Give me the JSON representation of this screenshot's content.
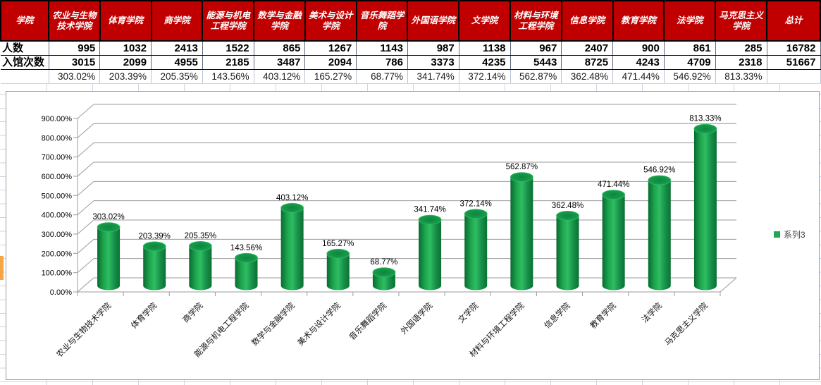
{
  "table": {
    "corner_label": "学院",
    "columns": [
      "农业与生物技术学院",
      "体育学院",
      "商学院",
      "能源与机电工程学院",
      "数学与金融学院",
      "美术与设计学院",
      "音乐舞蹈学院",
      "外国语学院",
      "文学院",
      "材料与环境工程学院",
      "信息学院",
      "教育学院",
      "法学院",
      "马克思主义学院",
      "总计"
    ],
    "rows": [
      {
        "label": "人数",
        "values": [
          "995",
          "1032",
          "2413",
          "1522",
          "865",
          "1267",
          "1143",
          "987",
          "1138",
          "967",
          "2407",
          "900",
          "861",
          "285",
          "16782"
        ]
      },
      {
        "label": "入馆次数",
        "values": [
          "3015",
          "2099",
          "4955",
          "2185",
          "3487",
          "2094",
          "786",
          "3373",
          "4235",
          "5443",
          "8725",
          "4243",
          "4709",
          "2318",
          "51667"
        ]
      },
      {
        "label": "",
        "values": [
          "303.02%",
          "203.39%",
          "205.35%",
          "143.56%",
          "403.12%",
          "165.27%",
          "68.77%",
          "341.74%",
          "372.14%",
          "562.87%",
          "362.48%",
          "471.44%",
          "546.92%",
          "813.33%",
          ""
        ]
      }
    ]
  },
  "chart_data": {
    "type": "bar",
    "style": "3d-cylinder",
    "title": "",
    "xlabel": "",
    "ylabel": "",
    "categories": [
      "农业与生物技术学院",
      "体育学院",
      "商学院",
      "能源与机电工程学院",
      "数学与金融学院",
      "美术与设计学院",
      "音乐舞蹈学院",
      "外国语学院",
      "文学院",
      "材料与环境工程学院",
      "信息学院",
      "教育学院",
      "法学院",
      "马克思主义学院"
    ],
    "series": [
      {
        "name": "系列3",
        "values": [
          303.02,
          203.39,
          205.35,
          143.56,
          403.12,
          165.27,
          68.77,
          341.74,
          372.14,
          562.87,
          362.48,
          471.44,
          546.92,
          813.33
        ]
      }
    ],
    "data_labels": [
      "303.02%",
      "203.39%",
      "205.35%",
      "143.56%",
      "403.12%",
      "165.27%",
      "68.77%",
      "341.74%",
      "372.14%",
      "562.87%",
      "362.48%",
      "471.44%",
      "546.92%",
      "813.33%"
    ],
    "ylim": [
      0,
      900
    ],
    "ytick_step": 100,
    "ytick_labels": [
      "0.00%",
      "100.00%",
      "200.00%",
      "300.00%",
      "400.00%",
      "500.00%",
      "600.00%",
      "700.00%",
      "800.00%",
      "900.00%"
    ],
    "grid": true,
    "legend": {
      "position": "right",
      "entries": [
        "系列3"
      ]
    }
  },
  "colors": {
    "header_bg": "#c00000",
    "header_text": "#ffffff",
    "bar_green": "#1fa850",
    "bar_green_dark": "#0a6a31",
    "bar_green_light": "#2fbd62",
    "chart_grid": "#9b9b9b",
    "sheet_grid": "#ccd6e4",
    "orange_cell": "#f6a544",
    "label_text": "#000000"
  }
}
